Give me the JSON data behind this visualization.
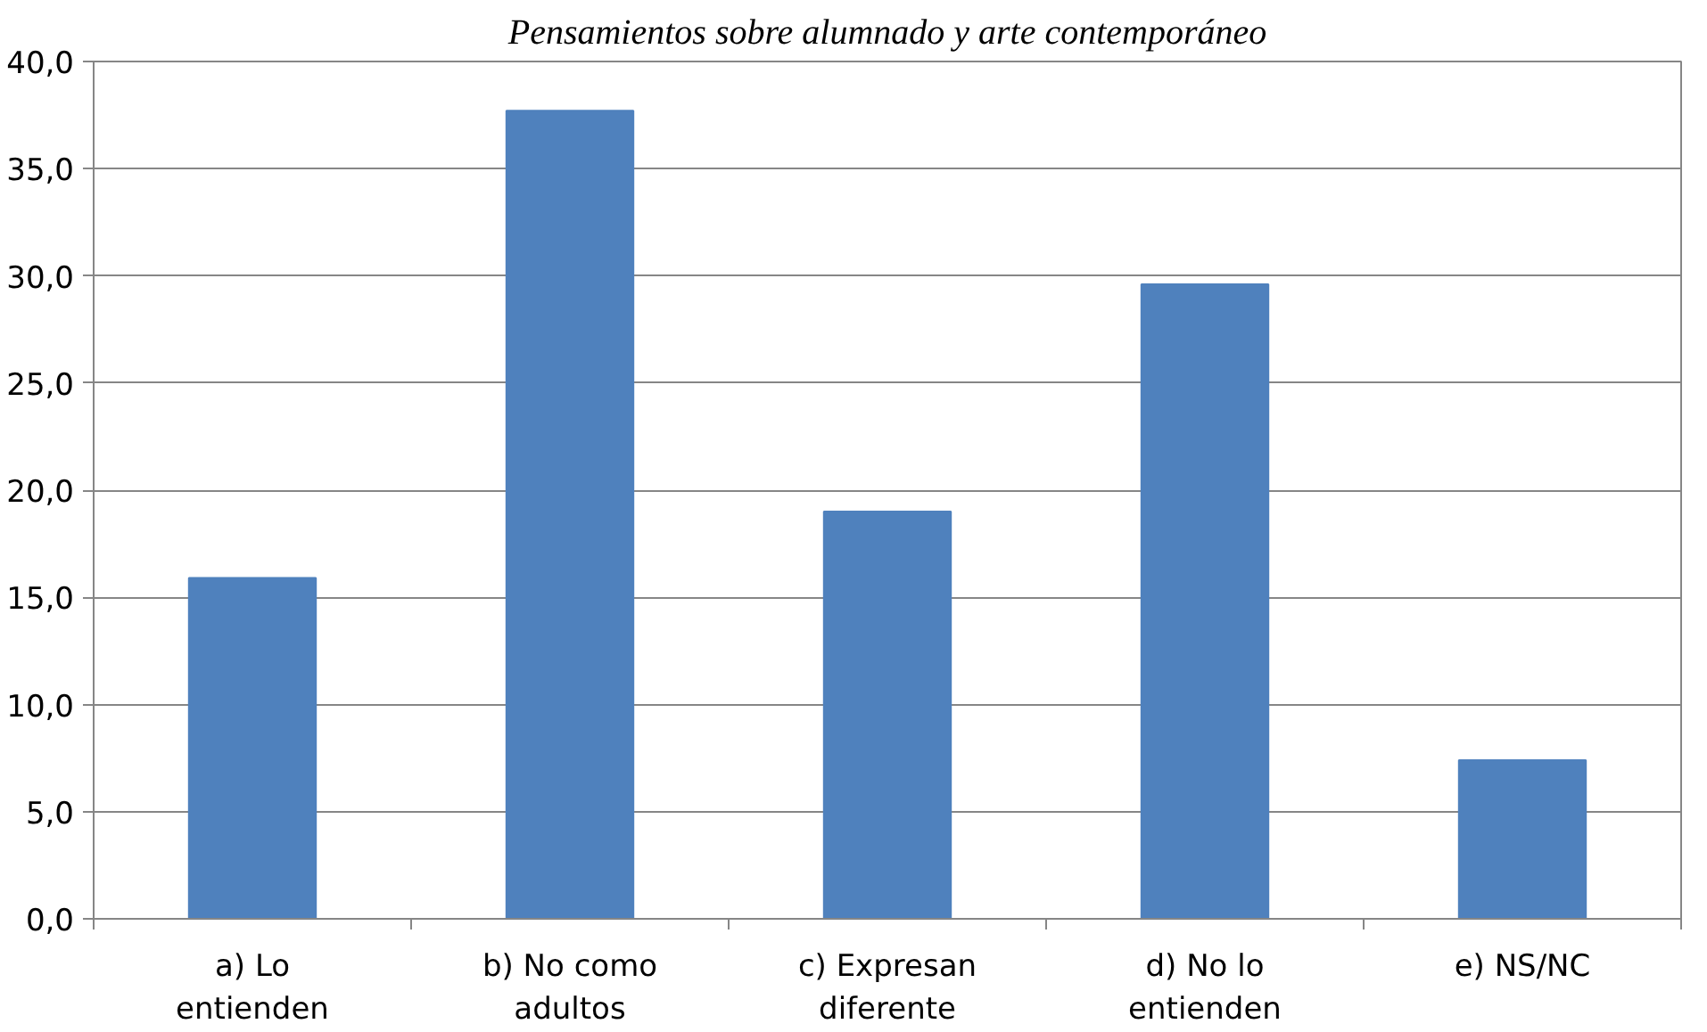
{
  "chart_data": {
    "type": "bar",
    "title": "Pensamientos sobre alumnado y arte contemporáneo",
    "categories": [
      "a) Lo\nentienden",
      "b) No como\nadultos",
      "c) Expresan\ndiferente",
      "d) No lo\nentienden",
      "e) NS/NC"
    ],
    "values": [
      15.9,
      37.7,
      19.0,
      29.6,
      7.4
    ],
    "color": "#4f81bd",
    "ylim": [
      0,
      40
    ],
    "yticks": [
      {
        "value": 0,
        "label": "0,0"
      },
      {
        "value": 5,
        "label": "5,0"
      },
      {
        "value": 10,
        "label": "10,0"
      },
      {
        "value": 15,
        "label": "15,0"
      },
      {
        "value": 20,
        "label": "20,0"
      },
      {
        "value": 25,
        "label": "25,0"
      },
      {
        "value": 30,
        "label": "30,0"
      },
      {
        "value": 35,
        "label": "35,0"
      },
      {
        "value": 40,
        "label": "40,0"
      }
    ],
    "grid": "y"
  }
}
